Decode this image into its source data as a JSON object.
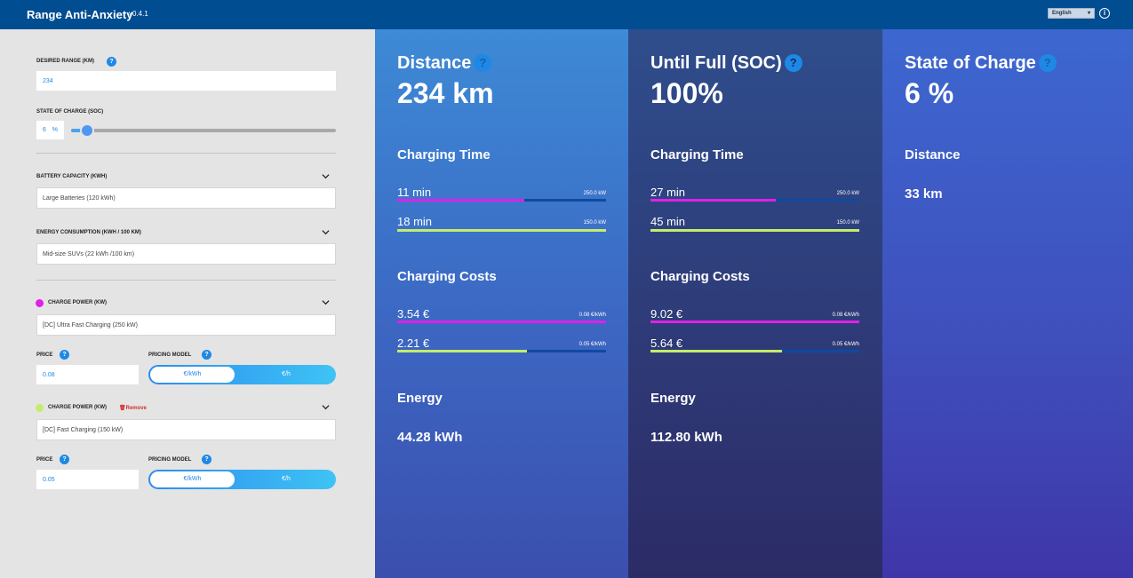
{
  "header": {
    "title": "Range Anti-Anxiety",
    "version": "v0.4.1",
    "language": "English",
    "info_icon": "info-icon"
  },
  "sidebar": {
    "desired_range": {
      "label": "DESIRED RANGE (KM)",
      "value": "234"
    },
    "soc": {
      "label": "STATE OF CHARGE (SOC)",
      "value": "6",
      "unit": "%",
      "level_percent": 6
    },
    "battery": {
      "label": "BATTERY CAPACITY (KWH)",
      "value": "Large Batteries (120 kWh)"
    },
    "consumption": {
      "label": "ENERGY CONSUMPTION (KWH / 100 KM)",
      "value": "Mid-size SUVs (22 kWh /100 km)"
    },
    "chargers": [
      {
        "label": "CHARGE POWER (KW)",
        "color": "#e020e8",
        "value": "[DC] Ultra Fast Charging (250 kW)",
        "price_label": "PRICE",
        "price": "0.08",
        "pricing_label": "PRICING MODEL",
        "option_a": "€/kWh",
        "option_b": "€/h",
        "selected": "€/kWh"
      },
      {
        "label": "CHARGE POWER (KW)",
        "color": "#c5ec6a",
        "remove": "Remove",
        "value": "[DC] Fast Charging (150 kW)",
        "price_label": "PRICE",
        "price": "0.05",
        "pricing_label": "PRICING MODEL",
        "option_a": "€/kWh",
        "option_b": "€/h",
        "selected": "€/kWh"
      }
    ]
  },
  "columns": [
    {
      "title": "Distance",
      "big": "234 km",
      "time_title": "Charging Time",
      "times": [
        {
          "value": "11 min",
          "rate": "250.0 kW",
          "fill_percent": 61,
          "color": "#e020e8"
        },
        {
          "value": "18 min",
          "rate": "150.0 kW",
          "fill_percent": 100,
          "color": "#c5ec6a"
        }
      ],
      "cost_title": "Charging Costs",
      "costs": [
        {
          "value": "3.54 €",
          "rate": "0.08 €/kWh",
          "fill_percent": 100,
          "color": "#e020e8"
        },
        {
          "value": "2.21 €",
          "rate": "0.05 €/kWh",
          "fill_percent": 62,
          "color": "#c5ec6a"
        }
      ],
      "energy_title": "Energy",
      "energy": "44.28 kWh"
    },
    {
      "title": "Until Full (SOC)",
      "big": "100%",
      "time_title": "Charging Time",
      "times": [
        {
          "value": "27 min",
          "rate": "250.0 kW",
          "fill_percent": 60,
          "color": "#e020e8"
        },
        {
          "value": "45 min",
          "rate": "150.0 kW",
          "fill_percent": 100,
          "color": "#c5ec6a"
        }
      ],
      "cost_title": "Charging Costs",
      "costs": [
        {
          "value": "9.02 €",
          "rate": "0.08 €/kWh",
          "fill_percent": 100,
          "color": "#e020e8"
        },
        {
          "value": "5.64 €",
          "rate": "0.05 €/kWh",
          "fill_percent": 63,
          "color": "#c5ec6a"
        }
      ],
      "energy_title": "Energy",
      "energy": "112.80 kWh"
    },
    {
      "title": "State of Charge",
      "big": "6 %",
      "distance_title": "Distance",
      "distance": "33 km"
    }
  ],
  "help_glyph": "?"
}
